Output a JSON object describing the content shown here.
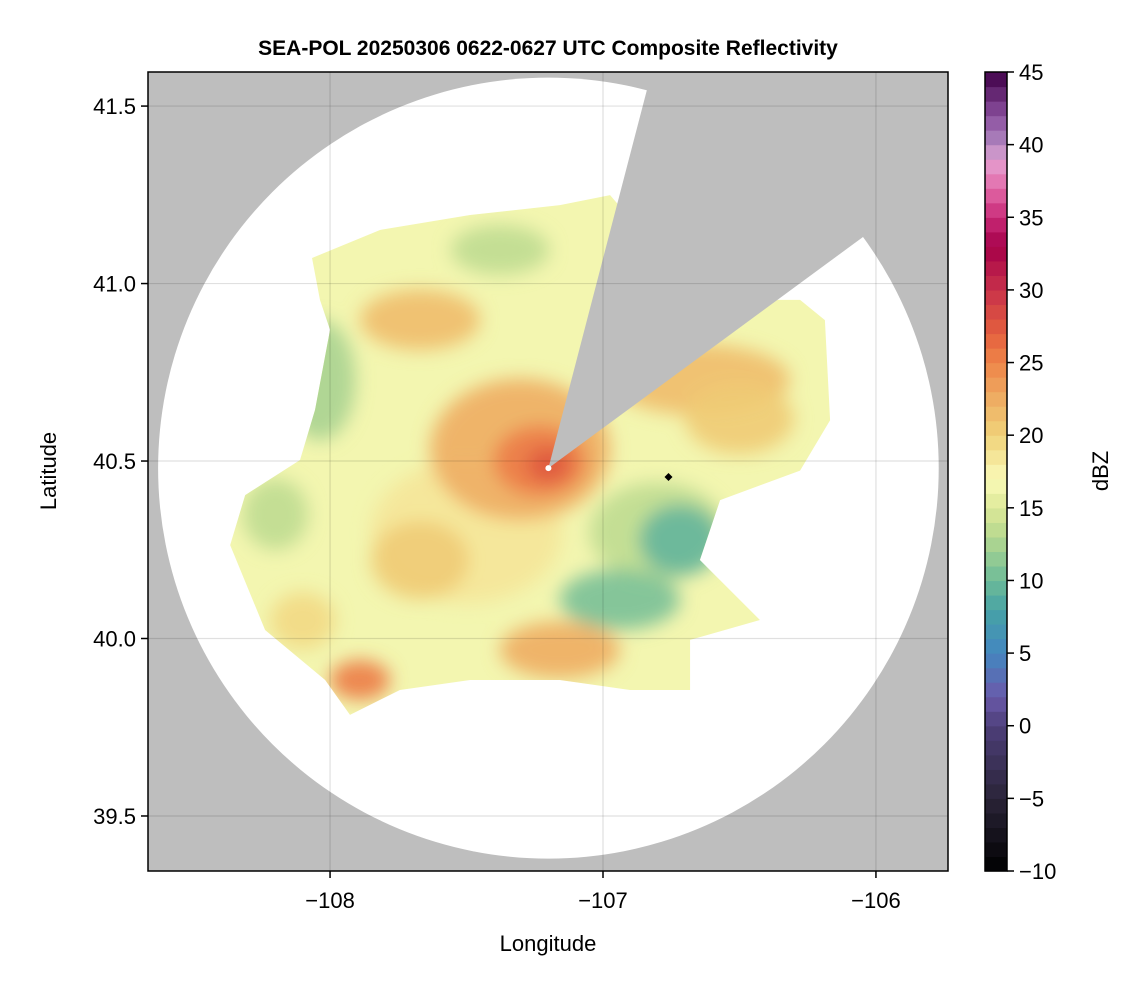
{
  "chart_data": {
    "type": "heatmap",
    "title": "SEA-POL 20250306 0622-0627 UTC Composite Reflectivity",
    "xlabel": "Longitude",
    "ylabel": "Latitude",
    "xlim": [
      -108.667,
      -105.736
    ],
    "ylim": [
      39.345,
      41.596
    ],
    "xticks": [
      -108,
      -107,
      -106
    ],
    "xtick_labels": [
      "−108",
      "−107",
      "−106"
    ],
    "yticks": [
      39.5,
      40.0,
      40.5,
      41.0,
      41.5
    ],
    "ytick_labels": [
      "39.5",
      "40.0",
      "40.5",
      "41.0",
      "41.5"
    ],
    "grid": true,
    "radar_site": {
      "lon": -107.2,
      "lat": 40.48
    },
    "marker": {
      "lon": -106.76,
      "lat": 40.455,
      "shape": "diamond"
    },
    "coverage_radius_deg": {
      "lon": 1.43,
      "lat": 1.1
    },
    "blocked_sector_azimuth_deg": [
      14.6,
      53.7
    ],
    "colorbar": {
      "label": "dBZ",
      "range": [
        -10,
        45
      ],
      "step": 1,
      "ticks": [
        -10,
        -5,
        0,
        5,
        10,
        15,
        20,
        25,
        30,
        35,
        40,
        45
      ],
      "tick_labels": [
        "−10",
        "−5",
        "0",
        "5",
        "10",
        "15",
        "20",
        "25",
        "30",
        "35",
        "40",
        "45"
      ],
      "stops": [
        [
          -10,
          "#000000"
        ],
        [
          -5,
          "#2a2438"
        ],
        [
          0,
          "#4e3f7a"
        ],
        [
          2,
          "#6a5aaa"
        ],
        [
          5,
          "#4386c0"
        ],
        [
          8,
          "#47a3a5"
        ],
        [
          10,
          "#6dbb98"
        ],
        [
          13,
          "#b5d88f"
        ],
        [
          15,
          "#dde898"
        ],
        [
          17,
          "#fafab8"
        ],
        [
          20,
          "#f0d27a"
        ],
        [
          23,
          "#eea55e"
        ],
        [
          25,
          "#ee8548"
        ],
        [
          27,
          "#e4603e"
        ],
        [
          30,
          "#c8314a"
        ],
        [
          33,
          "#a50049"
        ],
        [
          35,
          "#c92a78"
        ],
        [
          37,
          "#e26aa8"
        ],
        [
          39,
          "#e4a2d2"
        ],
        [
          40,
          "#b088c0"
        ],
        [
          42,
          "#8a4f9e"
        ],
        [
          45,
          "#3f0047"
        ]
      ]
    },
    "echo_outline": {
      "dbz": 16,
      "points": [
        [
          -108.066,
          41.072
        ],
        [
          -107.817,
          41.151
        ],
        [
          -107.487,
          41.193
        ],
        [
          -107.158,
          41.221
        ],
        [
          -106.974,
          41.249
        ],
        [
          -106.645,
          40.954
        ],
        [
          -106.278,
          40.954
        ],
        [
          -106.187,
          40.897
        ],
        [
          -106.168,
          40.615
        ],
        [
          -106.278,
          40.473
        ],
        [
          -106.571,
          40.39
        ],
        [
          -106.645,
          40.221
        ],
        [
          -106.425,
          40.052
        ],
        [
          -106.681,
          39.996
        ],
        [
          -106.681,
          39.855
        ],
        [
          -106.901,
          39.855
        ],
        [
          -107.158,
          39.883
        ],
        [
          -107.487,
          39.883
        ],
        [
          -107.744,
          39.855
        ],
        [
          -107.927,
          39.785
        ],
        [
          -108.018,
          39.883
        ],
        [
          -108.238,
          40.024
        ],
        [
          -108.366,
          40.263
        ],
        [
          -108.311,
          40.404
        ],
        [
          -108.11,
          40.503
        ],
        [
          -108.055,
          40.644
        ],
        [
          -108.0,
          40.87
        ],
        [
          -108.037,
          40.954
        ]
      ]
    },
    "echo_cells": [
      {
        "lon": -107.5,
        "lat": 40.3,
        "rx": 0.35,
        "ry": 0.2,
        "dbz": 18
      },
      {
        "lon": -107.304,
        "lat": 40.532,
        "rx": 0.33,
        "ry": 0.2,
        "dbz": 22
      },
      {
        "lon": -107.231,
        "lat": 40.5,
        "rx": 0.17,
        "ry": 0.1,
        "dbz": 25
      },
      {
        "lon": -107.2,
        "lat": 40.49,
        "rx": 0.08,
        "ry": 0.05,
        "dbz": 27
      },
      {
        "lon": -107.67,
        "lat": 40.898,
        "rx": 0.22,
        "ry": 0.085,
        "dbz": 21
      },
      {
        "lon": -106.645,
        "lat": 40.729,
        "rx": 0.33,
        "ry": 0.1,
        "dbz": 21
      },
      {
        "lon": -106.5,
        "lat": 40.62,
        "rx": 0.2,
        "ry": 0.1,
        "dbz": 20
      },
      {
        "lon": -106.8,
        "lat": 40.3,
        "rx": 0.25,
        "ry": 0.14,
        "dbz": 13
      },
      {
        "lon": -106.938,
        "lat": 40.11,
        "rx": 0.22,
        "ry": 0.085,
        "dbz": 10
      },
      {
        "lon": -106.718,
        "lat": 40.278,
        "rx": 0.15,
        "ry": 0.1,
        "dbz": 9
      },
      {
        "lon": -108.037,
        "lat": 40.728,
        "rx": 0.13,
        "ry": 0.17,
        "dbz": 12
      },
      {
        "lon": -107.89,
        "lat": 39.883,
        "rx": 0.11,
        "ry": 0.056,
        "dbz": 25
      },
      {
        "lon": -107.158,
        "lat": 39.968,
        "rx": 0.22,
        "ry": 0.08,
        "dbz": 22
      },
      {
        "lon": -107.67,
        "lat": 40.221,
        "rx": 0.18,
        "ry": 0.11,
        "dbz": 20
      },
      {
        "lon": -107.377,
        "lat": 41.095,
        "rx": 0.18,
        "ry": 0.07,
        "dbz": 13
      },
      {
        "lon": -108.2,
        "lat": 40.35,
        "rx": 0.12,
        "ry": 0.1,
        "dbz": 13
      },
      {
        "lon": -108.1,
        "lat": 40.05,
        "rx": 0.12,
        "ry": 0.08,
        "dbz": 19
      }
    ]
  }
}
